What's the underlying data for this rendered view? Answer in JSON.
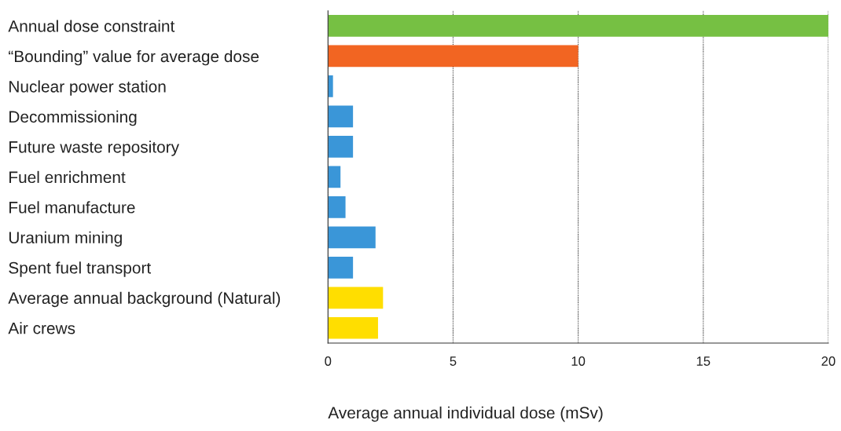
{
  "chart_data": {
    "type": "bar",
    "orientation": "horizontal",
    "xlabel": "Average annual individual dose (mSv)",
    "categories": [
      "Annual dose constraint",
      "“Bounding” value for average dose",
      "Nuclear power station",
      "Decommissioning",
      "Future waste repository",
      "Fuel enrichment",
      "Fuel manufacture",
      "Uranium mining",
      "Spent fuel transport",
      "Average annual background (Natural)",
      "Air crews"
    ],
    "values": [
      20,
      10,
      0.2,
      1.0,
      1.0,
      0.5,
      0.7,
      1.9,
      1.0,
      2.2,
      2.0
    ],
    "colors": [
      "#76c043",
      "#f26522",
      "#3a96d8",
      "#3a96d8",
      "#3a96d8",
      "#3a96d8",
      "#3a96d8",
      "#3a96d8",
      "#3a96d8",
      "#ffde00",
      "#ffde00"
    ],
    "xlim": [
      0,
      20
    ],
    "xticks": [
      0,
      5,
      10,
      15,
      20
    ],
    "grid": "x",
    "legend": false
  }
}
